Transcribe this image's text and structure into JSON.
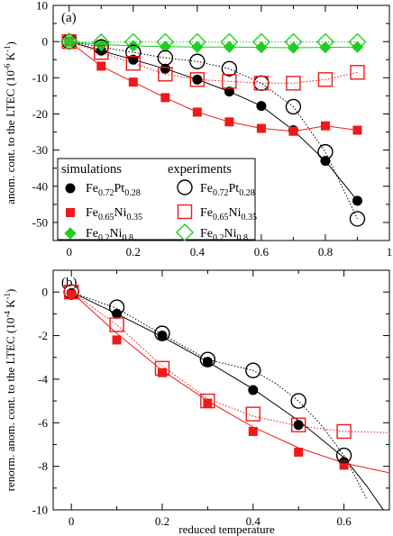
{
  "chart_data": [
    {
      "id": "a",
      "type": "line",
      "panel_label": "(a)",
      "ylabel_main": "anom. cont. to the LTEC (10",
      "ylabel_exp": "-6",
      "ylabel_unit": " K",
      "ylabel_unit_exp": "-1",
      "ylabel_close": ")",
      "xlim": [
        -0.05,
        1.0
      ],
      "ylim": [
        -55,
        10
      ],
      "xticks": [
        0,
        0.2,
        0.4,
        0.6,
        0.8,
        1
      ],
      "xtick_labels": [
        "0",
        "0.2",
        "0.4",
        "0.6",
        "0.8",
        "1"
      ],
      "yticks": [
        10,
        0,
        -10,
        -20,
        -30,
        -40,
        -50
      ],
      "ytick_labels": [
        "10",
        "0",
        "-10",
        "-20",
        "-30",
        "-40",
        "-50"
      ],
      "legend": {
        "sim_header": "simulations",
        "exp_header": "experiments",
        "entries": [
          {
            "base1": "Fe",
            "sub1": "0.72",
            "base2": "Pt",
            "sub2": "0.28"
          },
          {
            "base1": "Fe",
            "sub1": "0.65",
            "base2": "Ni",
            "sub2": "0.35"
          },
          {
            "base1": "Fe",
            "sub1": "0.2",
            "base2": "Ni",
            "sub2": "0.8"
          }
        ]
      },
      "series": [
        {
          "kind": "simulation",
          "color": "#000000",
          "marker": "circle-filled",
          "line": "solid",
          "x": [
            0,
            0.1,
            0.2,
            0.3,
            0.4,
            0.5,
            0.6,
            0.7,
            0.8,
            0.9
          ],
          "y": [
            0,
            -2.5,
            -5,
            -7.5,
            -10.5,
            -13.8,
            -17.8,
            -24.5,
            -33,
            -44
          ]
        },
        {
          "kind": "simulation",
          "color": "#ee1a1a",
          "marker": "square-filled",
          "line": "solid",
          "x": [
            0,
            0.1,
            0.2,
            0.3,
            0.4,
            0.5,
            0.6,
            0.7,
            0.8,
            0.9
          ],
          "y": [
            0,
            -6.8,
            -11.2,
            -15.5,
            -19.5,
            -22.2,
            -24,
            -24.8,
            -23.3,
            -24.5
          ]
        },
        {
          "kind": "simulation",
          "color": "#22cc22",
          "marker": "diamond-filled",
          "line": "solid",
          "x": [
            0,
            0.1,
            0.2,
            0.3,
            0.4,
            0.5,
            0.6,
            0.7,
            0.8,
            0.9
          ],
          "y": [
            0,
            -0.8,
            -1.2,
            -1.4,
            -1.5,
            -1.5,
            -1.6,
            -1.7,
            -1.6,
            -1.5
          ]
        },
        {
          "kind": "experiment",
          "color": "#000000",
          "marker": "circle-open",
          "line": "dotted",
          "x": [
            0,
            0.1,
            0.2,
            0.3,
            0.4,
            0.5,
            0.6,
            0.7,
            0.8,
            0.9
          ],
          "y": [
            0,
            -1.5,
            -3,
            -4.5,
            -5.5,
            -7.5,
            -11.5,
            -18,
            -30.5,
            -49
          ]
        },
        {
          "kind": "experiment",
          "color": "#ee1a1a",
          "marker": "square-open",
          "line": "dotted",
          "x": [
            0,
            0.1,
            0.2,
            0.3,
            0.4,
            0.5,
            0.6,
            0.7,
            0.8,
            0.9
          ],
          "y": [
            0,
            -3,
            -6,
            -9,
            -10.5,
            -11,
            -11.5,
            -11.5,
            -10.5,
            -8.5
          ]
        },
        {
          "kind": "experiment",
          "color": "#22cc22",
          "marker": "diamond-open",
          "line": "dotted",
          "x": [
            0,
            0.1,
            0.2,
            0.3,
            0.4,
            0.5,
            0.6,
            0.7,
            0.8,
            0.9
          ],
          "y": [
            0,
            -0.2,
            -0.1,
            -0.1,
            -0.1,
            -0.1,
            -0.1,
            -0.1,
            -0.1,
            -0.1
          ]
        }
      ]
    },
    {
      "id": "b",
      "type": "line",
      "panel_label": "(b)",
      "ylabel_main": "renorm. anom. cont. to the LTEC (10",
      "ylabel_exp": "-4",
      "ylabel_unit": " K",
      "ylabel_unit_exp": "-1",
      "ylabel_close": ")",
      "xlabel": "reduced temperature",
      "xlim": [
        -0.04,
        0.7
      ],
      "ylim": [
        -10,
        1
      ],
      "xticks": [
        0,
        0.2,
        0.4,
        0.6
      ],
      "xtick_labels": [
        "0",
        "0.2",
        "0.4",
        "0.6"
      ],
      "yticks": [
        0,
        -2,
        -4,
        -6,
        -8,
        -10
      ],
      "ytick_labels": [
        "0",
        "-2",
        "-4",
        "-6",
        "-8",
        "-10"
      ],
      "series": [
        {
          "kind": "sim-points",
          "color": "#000000",
          "marker": "circle-filled",
          "x": [
            0,
            0.1,
            0.2,
            0.3,
            0.4,
            0.5,
            0.6
          ],
          "y": [
            -0.05,
            -1,
            -2,
            -3.2,
            -4.5,
            -6.1,
            -7.8
          ]
        },
        {
          "kind": "sim-points",
          "color": "#ee1a1a",
          "marker": "square-filled",
          "x": [
            0,
            0.1,
            0.2,
            0.3,
            0.4,
            0.5,
            0.6
          ],
          "y": [
            -0.1,
            -2.2,
            -3.7,
            -5.1,
            -6.4,
            -7.35,
            -7.95
          ]
        },
        {
          "kind": "exp-points",
          "color": "#000000",
          "marker": "circle-open",
          "x": [
            0,
            0.1,
            0.2,
            0.3,
            0.4,
            0.5,
            0.6
          ],
          "y": [
            0,
            -0.7,
            -1.9,
            -3.1,
            -3.6,
            -5.0,
            -7.5
          ]
        },
        {
          "kind": "exp-points",
          "color": "#ee1a1a",
          "marker": "square-open",
          "x": [
            0,
            0.1,
            0.2,
            0.3,
            0.4,
            0.5,
            0.6
          ],
          "y": [
            0,
            -1.5,
            -3.5,
            -5.0,
            -5.6,
            -6.1,
            -6.4
          ]
        },
        {
          "kind": "fit",
          "color": "#000000",
          "line": "solid",
          "x": [
            0,
            0.1,
            0.2,
            0.3,
            0.4,
            0.5,
            0.6,
            0.65,
            0.7
          ],
          "y": [
            0,
            -1.0,
            -2.05,
            -3.2,
            -4.45,
            -5.9,
            -7.6,
            -8.9,
            -10.4
          ]
        },
        {
          "kind": "fit",
          "color": "#ee1a1a",
          "line": "solid",
          "x": [
            0,
            0.1,
            0.2,
            0.3,
            0.4,
            0.5,
            0.6,
            0.7
          ],
          "y": [
            0,
            -1.9,
            -3.6,
            -5.0,
            -6.2,
            -7.15,
            -7.85,
            -8.3
          ]
        },
        {
          "kind": "fit",
          "color": "#000000",
          "line": "dotted",
          "x": [
            0,
            0.1,
            0.2,
            0.3,
            0.4,
            0.45,
            0.5,
            0.55,
            0.6,
            0.65
          ],
          "y": [
            0,
            -0.75,
            -1.95,
            -3.1,
            -3.6,
            -4.2,
            -5.0,
            -6.1,
            -7.5,
            -9.5
          ]
        },
        {
          "kind": "fit",
          "color": "#ee1a1a",
          "line": "dotted",
          "x": [
            0,
            0.1,
            0.2,
            0.3,
            0.4,
            0.5,
            0.6,
            0.7
          ],
          "y": [
            0,
            -1.5,
            -3.4,
            -4.9,
            -5.7,
            -6.15,
            -6.4,
            -6.45
          ]
        }
      ]
    }
  ]
}
